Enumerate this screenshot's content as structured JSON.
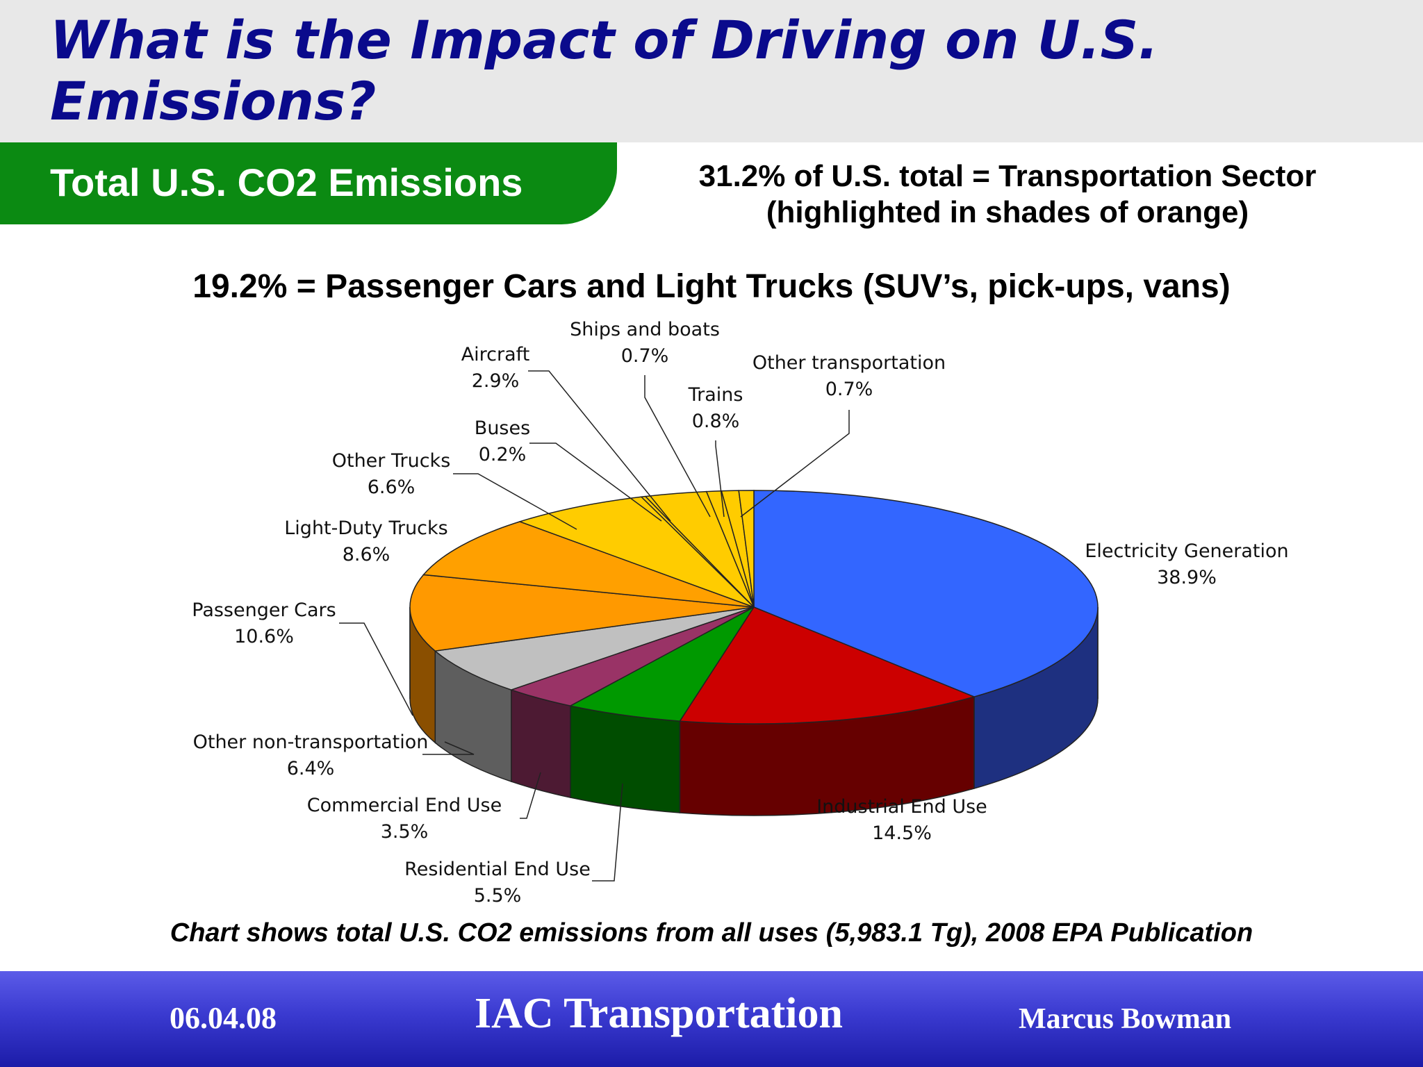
{
  "slide": {
    "title": "What is the Impact of Driving on U.S. Emissions?",
    "subtitle": "Total U.S. CO2 Emissions",
    "summary_line1": "31.2% of U.S. total = Transportation Sector",
    "summary_line2": "(highlighted in shades of orange)",
    "passenger_note": "19.2% = Passenger Cars and Light Trucks (SUV’s, pick-ups, vans)",
    "caption": "Chart shows total U.S. CO2 emissions from all uses (5,983.1 Tg), 2008 EPA Publication"
  },
  "footer": {
    "date": "06.04.08",
    "title": "IAC Transportation",
    "author": "Marcus Bowman"
  },
  "chart_data": {
    "type": "pie",
    "title": "Total U.S. CO2 Emissions",
    "units": "% of total",
    "slices": [
      {
        "label": "Electricity Generation",
        "value": 38.9,
        "value_label": "38.9%",
        "color": "#3366ff",
        "side_color": "#1e3080"
      },
      {
        "label": "Industrial End Use",
        "value": 14.5,
        "value_label": "14.5%",
        "color": "#cc0000",
        "side_color": "#660000"
      },
      {
        "label": "Residential End Use",
        "value": 5.5,
        "value_label": "5.5%",
        "color": "#009900",
        "side_color": "#004d00"
      },
      {
        "label": "Commercial End Use",
        "value": 3.5,
        "value_label": "3.5%",
        "color": "#993366",
        "side_color": "#4d1a33"
      },
      {
        "label": "Other non-transportation",
        "value": 6.4,
        "value_label": "6.4%",
        "color": "#c0c0c0",
        "side_color": "#5e5e5e"
      },
      {
        "label": "Passenger Cars",
        "value": 10.6,
        "value_label": "10.6%",
        "color": "#ff9900",
        "side_color": "#8a4f00"
      },
      {
        "label": "Light-Duty Trucks",
        "value": 8.6,
        "value_label": "8.6%",
        "color": "#ffa000",
        "side_color": "#8a5200"
      },
      {
        "label": "Other Trucks",
        "value": 6.6,
        "value_label": "6.6%",
        "color": "#ffcc00",
        "side_color": "#8a6e00"
      },
      {
        "label": "Buses",
        "value": 0.2,
        "value_label": "0.2%",
        "color": "#ffcc00",
        "side_color": "#8a6e00"
      },
      {
        "label": "Aircraft",
        "value": 2.9,
        "value_label": "2.9%",
        "color": "#ffcc00",
        "side_color": "#8a6e00"
      },
      {
        "label": "Ships and boats",
        "value": 0.7,
        "value_label": "0.7%",
        "color": "#ffcc00",
        "side_color": "#8a6e00"
      },
      {
        "label": "Trains",
        "value": 0.8,
        "value_label": "0.8%",
        "color": "#ffcc00",
        "side_color": "#8a6e00"
      },
      {
        "label": "Other transportation",
        "value": 0.7,
        "value_label": "0.7%",
        "color": "#ffcc00",
        "side_color": "#8a6e00"
      }
    ]
  }
}
